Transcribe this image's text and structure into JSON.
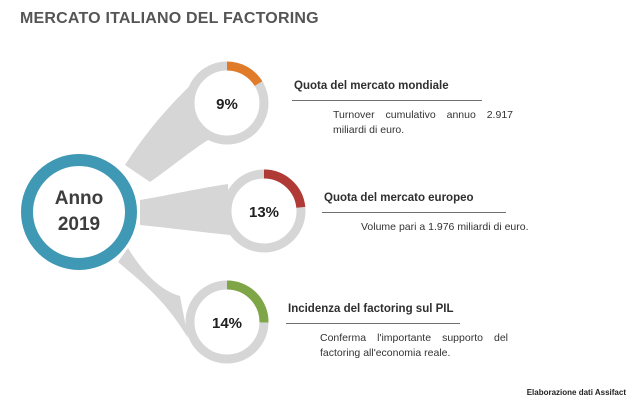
{
  "title": "MERCATO ITALIANO DEL FACTORING",
  "center": {
    "line1": "Anno",
    "line2": "2019"
  },
  "colors": {
    "center_ring": "#3f98b4",
    "connector": "#d6d6d6",
    "track": "#d6d6d6",
    "world": "#e07b2a",
    "europe": "#b03a36",
    "gdp": "#7ea646"
  },
  "items": [
    {
      "percent_label": "9%",
      "percent_value": 9,
      "heading": "Quota del mercato mondiale",
      "description": "Turnover cumulativo annuo 2.917 miliardi di euro."
    },
    {
      "percent_label": "13%",
      "percent_value": 13,
      "heading": "Quota del mercato europeo",
      "description": "Volume pari a 1.976 miliardi di euro."
    },
    {
      "percent_label": "14%",
      "percent_value": 14,
      "heading": "Incidenza del factoring sul PIL",
      "description": "Conferma l'importante supporto del factoring all'economia reale."
    }
  ],
  "source": "Elaborazione dati Assifact"
}
